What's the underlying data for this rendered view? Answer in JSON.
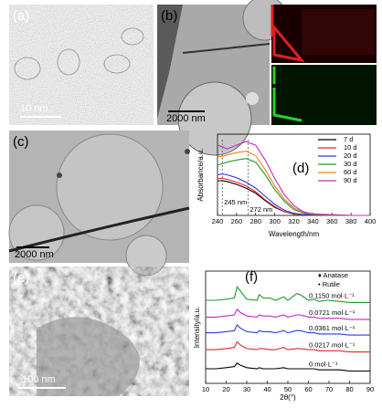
{
  "panels": {
    "a": {
      "label": "(a)",
      "scale_bar": "10 nm"
    },
    "b": {
      "label": "(b)",
      "scale_bar": "2000 nm"
    },
    "c": {
      "label": "(c)",
      "scale_bar": "2000 nm"
    },
    "e": {
      "label": "(e)",
      "scale_bar": "100 nm"
    }
  },
  "chart_data": [
    {
      "type": "line",
      "panel_label": "(d)",
      "x_label": "Wavelength/nm",
      "y_label": "Absorbance/a.u.",
      "x": [
        240,
        245,
        250,
        260,
        270,
        280,
        290,
        300,
        310,
        320,
        330,
        340,
        360,
        380,
        400
      ],
      "xlim": [
        240,
        400
      ],
      "xticks": [
        240,
        260,
        280,
        300,
        320,
        340,
        360,
        380,
        400
      ],
      "ylim": [
        0,
        1.1
      ],
      "legend": "upper right",
      "annotations": [
        {
          "text": "245 nm",
          "x": 245
        },
        {
          "text": "272 nm",
          "x": 272
        }
      ],
      "series": [
        {
          "name": "7 d",
          "color": "#000000",
          "values": [
            0.47,
            0.47,
            0.46,
            0.42,
            0.37,
            0.3,
            0.2,
            0.11,
            0.05,
            0.02,
            0.01,
            0.01,
            0,
            0,
            0
          ]
        },
        {
          "name": "10 d",
          "color": "#e8262b",
          "values": [
            0.5,
            0.5,
            0.49,
            0.45,
            0.4,
            0.32,
            0.21,
            0.12,
            0.05,
            0.02,
            0.01,
            0.01,
            0,
            0,
            0
          ]
        },
        {
          "name": "20 d",
          "color": "#2b3bd8",
          "values": [
            0.55,
            0.56,
            0.55,
            0.51,
            0.45,
            0.37,
            0.26,
            0.15,
            0.07,
            0.03,
            0.01,
            0.01,
            0,
            0,
            0
          ]
        },
        {
          "name": "30 d",
          "color": "#1f9a2e",
          "values": [
            0.68,
            0.7,
            0.72,
            0.75,
            0.77,
            0.72,
            0.55,
            0.35,
            0.19,
            0.08,
            0.03,
            0.01,
            0,
            0,
            0
          ]
        },
        {
          "name": "60 d",
          "color": "#f07f14",
          "values": [
            0.8,
            0.8,
            0.82,
            0.85,
            0.87,
            0.81,
            0.62,
            0.4,
            0.22,
            0.1,
            0.04,
            0.02,
            0.01,
            0,
            0
          ]
        },
        {
          "name": "90 d",
          "color": "#c02ac8",
          "values": [
            0.95,
            0.93,
            0.9,
            0.95,
            1.0,
            0.95,
            0.75,
            0.5,
            0.28,
            0.13,
            0.05,
            0.02,
            0.01,
            0,
            0
          ]
        }
      ]
    },
    {
      "type": "line",
      "panel_label": "(f)",
      "x_label": "2θ(°)",
      "y_label": "Intensity/a.u.",
      "x": [
        10,
        15,
        20,
        24,
        25.3,
        27,
        30,
        35,
        36.1,
        38,
        41.2,
        44,
        48,
        50,
        54.3,
        56,
        60,
        62.8,
        65,
        69,
        75,
        80,
        85,
        90
      ],
      "xlim": [
        10,
        90
      ],
      "xticks": [
        10,
        20,
        30,
        40,
        50,
        60,
        70,
        80,
        90
      ],
      "ylim": [
        0,
        10
      ],
      "markers": [
        "♦ Anatase",
        "• Rutile"
      ],
      "series": [
        {
          "name": "0.1150 mol·L⁻¹",
          "color": "#1f9a2e",
          "values": [
            7.4,
            7.4,
            7.5,
            7.6,
            8.6,
            8.2,
            7.5,
            7.4,
            7.9,
            7.6,
            7.6,
            7.4,
            7.7,
            7.4,
            8.0,
            7.9,
            7.4,
            7.5,
            7.3,
            7.4,
            7.3,
            7.2,
            7.2,
            7.2
          ]
        },
        {
          "name": "0.0721 mol·L⁻¹",
          "color": "#c02ac8",
          "values": [
            5.9,
            5.9,
            6.0,
            6.1,
            6.6,
            6.3,
            6.0,
            5.9,
            6.1,
            6.0,
            6.0,
            5.9,
            6.1,
            5.9,
            6.1,
            6.1,
            5.9,
            5.9,
            5.8,
            5.8,
            5.8,
            5.7,
            5.7,
            5.7
          ]
        },
        {
          "name": "0.0361 mol·L⁻¹",
          "color": "#2b3bd8",
          "values": [
            4.5,
            4.5,
            4.6,
            4.7,
            5.2,
            4.9,
            4.6,
            4.5,
            4.7,
            4.6,
            4.6,
            4.5,
            4.7,
            4.5,
            4.7,
            4.7,
            4.5,
            4.5,
            4.4,
            4.4,
            4.4,
            4.3,
            4.3,
            4.3
          ]
        },
        {
          "name": "0.0217 mol·L⁻¹",
          "color": "#e8262b",
          "values": [
            3.0,
            3.0,
            3.1,
            3.2,
            3.7,
            3.4,
            3.1,
            3.0,
            3.1,
            3.1,
            3.0,
            3.0,
            3.2,
            3.0,
            3.1,
            3.1,
            3.0,
            3.0,
            2.9,
            2.9,
            2.9,
            2.8,
            2.8,
            2.8
          ]
        },
        {
          "name": "0 mol·L⁻¹",
          "color": "#000000",
          "values": [
            1.3,
            1.3,
            1.4,
            1.5,
            1.8,
            1.6,
            1.4,
            1.3,
            1.4,
            1.3,
            1.3,
            1.3,
            1.4,
            1.3,
            1.3,
            1.3,
            1.3,
            1.3,
            1.2,
            1.2,
            1.2,
            1.1,
            1.1,
            1.1
          ]
        }
      ]
    }
  ]
}
